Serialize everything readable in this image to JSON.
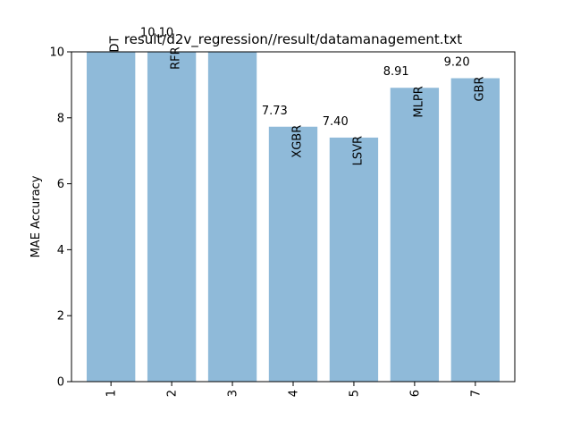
{
  "chart_data": {
    "type": "bar",
    "title": "result/d2v_regression//result/datamanagement.txt",
    "xlabel": "",
    "ylabel": "MAE Accuracy",
    "ylim": [
      0,
      10
    ],
    "yticks": [
      0,
      2,
      4,
      6,
      8,
      10
    ],
    "categories": [
      "1",
      "2",
      "3",
      "4",
      "5",
      "6",
      "7"
    ],
    "values": [
      10.42,
      10.1,
      10.35,
      7.73,
      7.4,
      8.91,
      9.2
    ],
    "value_labels": [
      "",
      "10.10",
      "",
      "7.73",
      "7.40",
      "8.91",
      "9.20"
    ],
    "bar_labels": [
      "DT",
      "RFR",
      "",
      "XGBR",
      "LSVR",
      "MLPR",
      "GBR"
    ],
    "bar_color": "#8fbad9",
    "grid": false,
    "legend": "none"
  }
}
